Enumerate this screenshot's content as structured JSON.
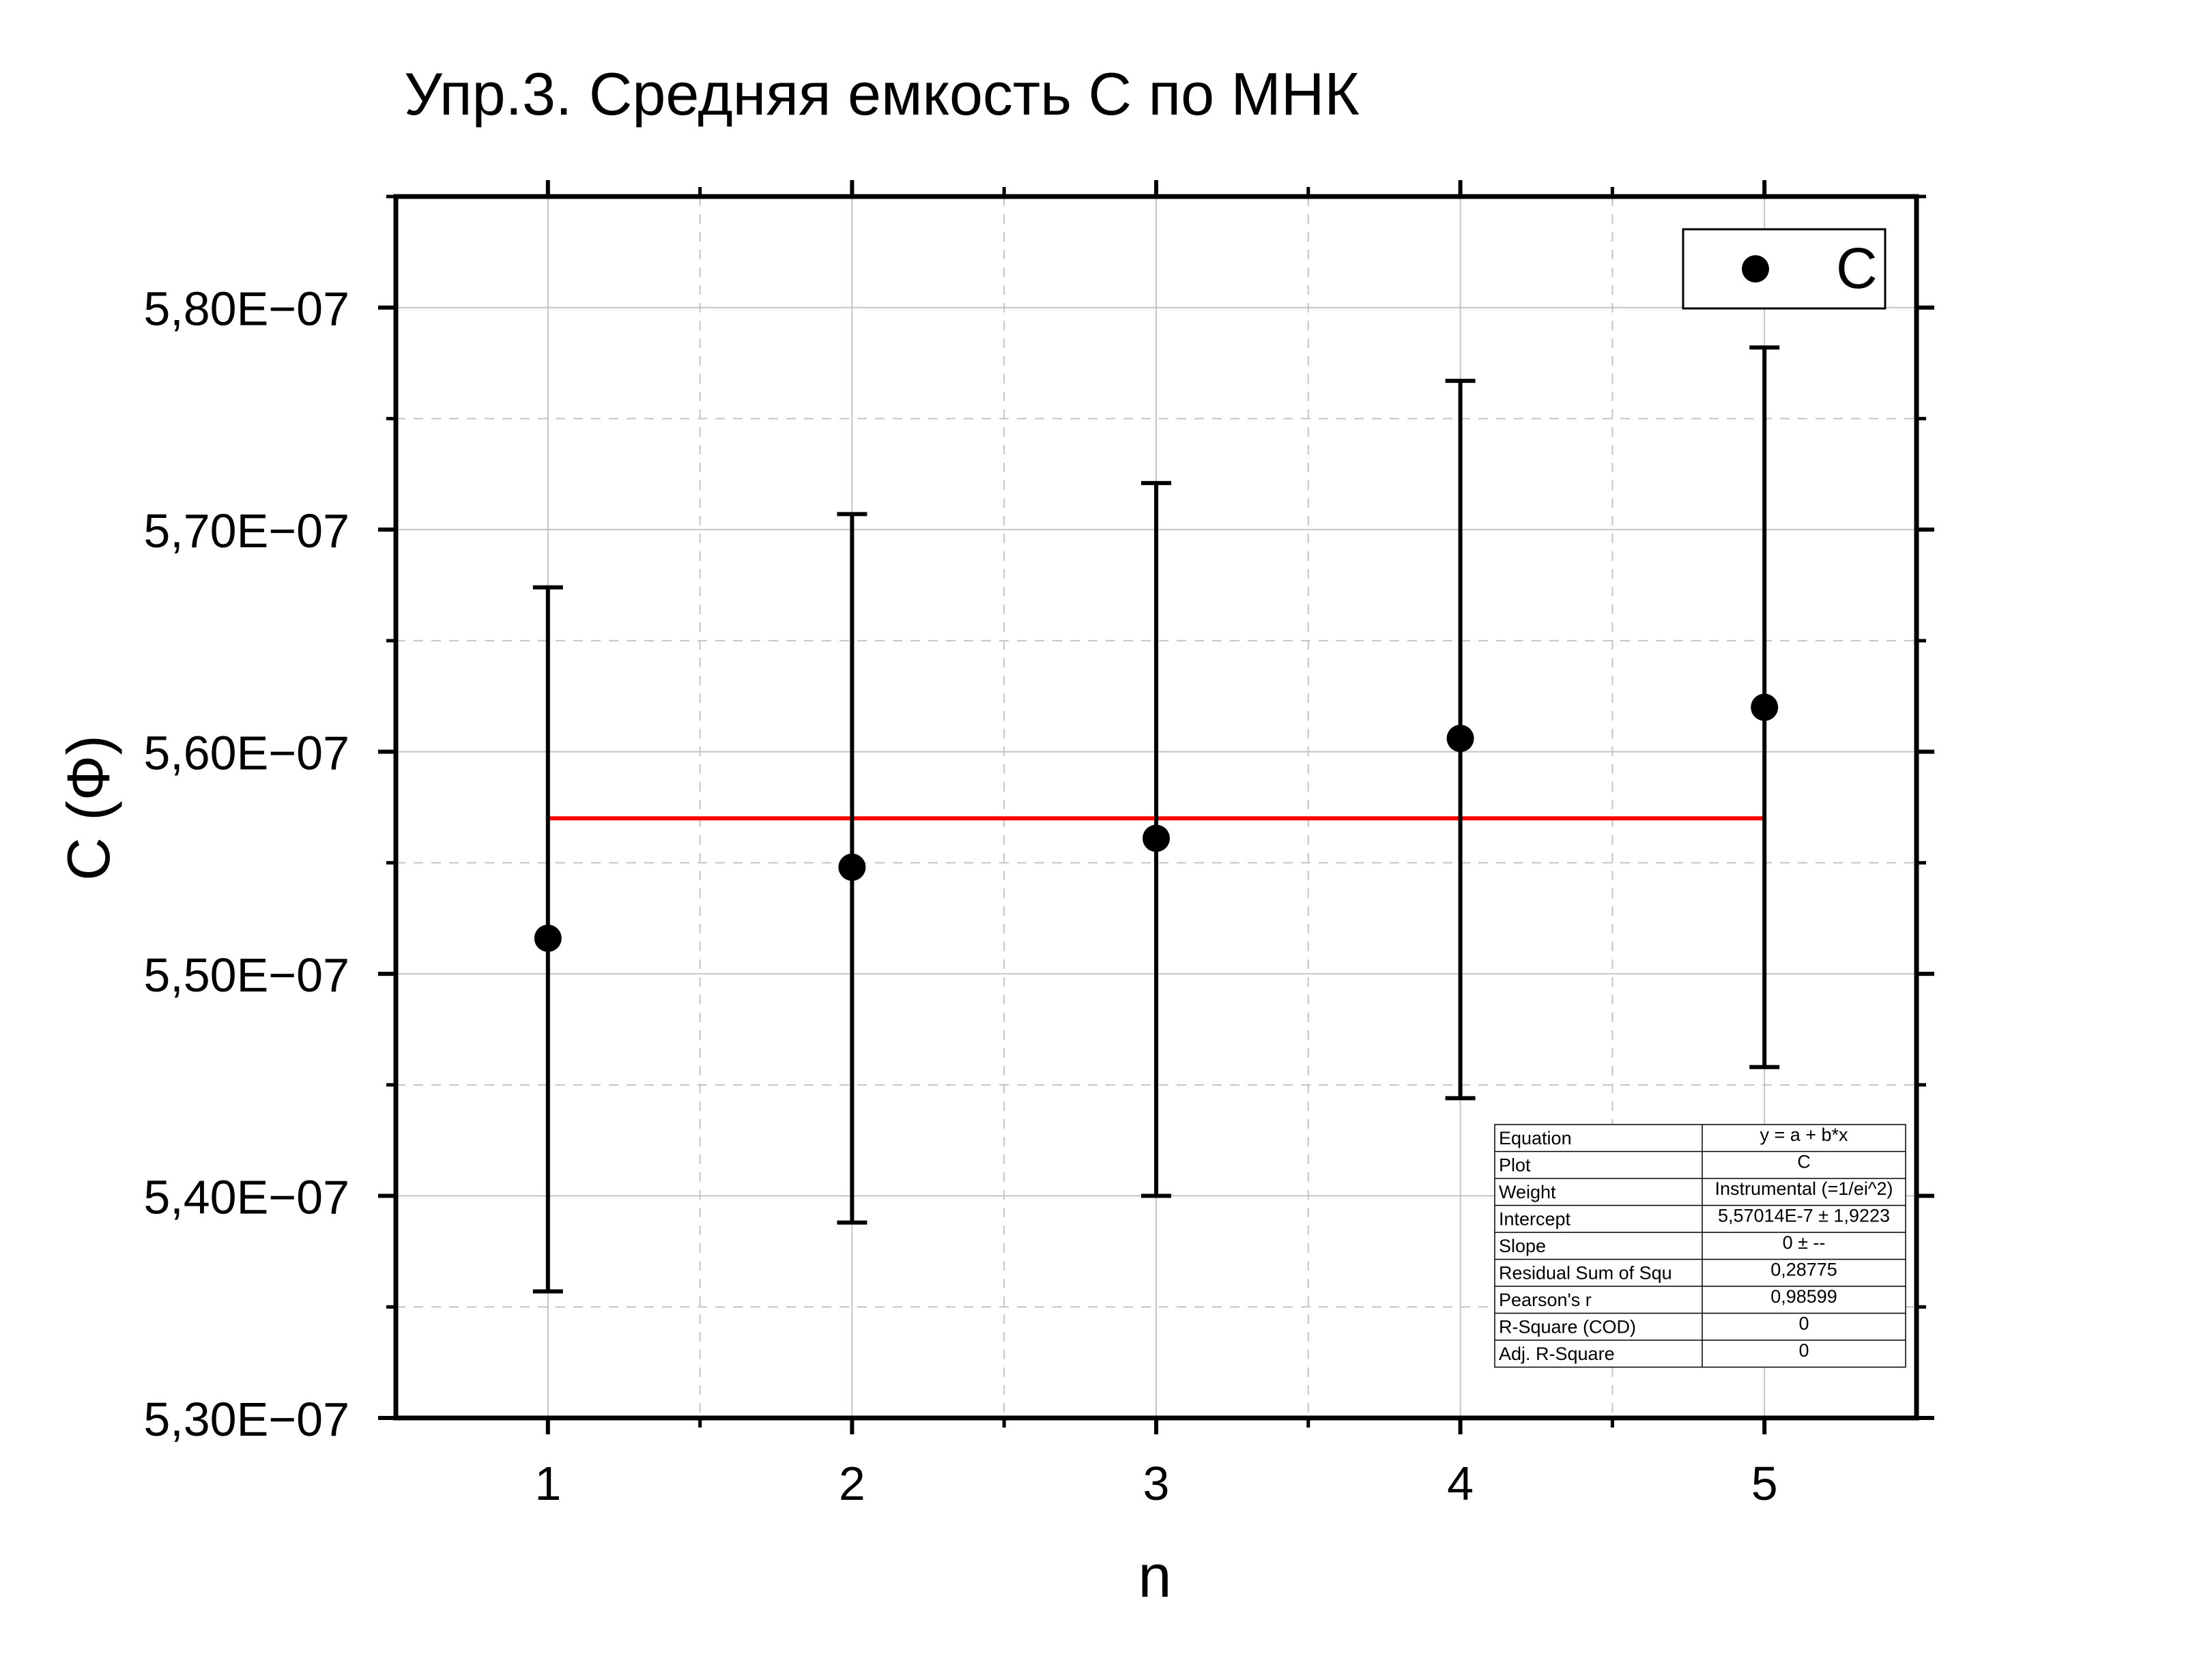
{
  "chart_data": {
    "type": "scatter",
    "title": "Упр.3. Средняя емкость С по МНК",
    "xlabel": "n",
    "ylabel": "С (Ф)",
    "xlim": [
      0.5,
      5.5
    ],
    "ylim": [
      5.3e-07,
      5.85e-07
    ],
    "x_ticks": [
      1,
      2,
      3,
      4,
      5
    ],
    "x_tick_labels": [
      "1",
      "2",
      "3",
      "4",
      "5"
    ],
    "y_ticks": [
      5.3e-07,
      5.4e-07,
      5.5e-07,
      5.6e-07,
      5.7e-07,
      5.8e-07
    ],
    "y_tick_labels": [
      "5,30E−07",
      "5,40E−07",
      "5,50E−07",
      "5,60E−07",
      "5,70E−07",
      "5,80E−07"
    ],
    "grid": true,
    "legend_position": "top-right",
    "series": [
      {
        "name": "C",
        "color": "#000000",
        "x": [
          1,
          2,
          3,
          4,
          5
        ],
        "y": [
          5.516e-07,
          5.548e-07,
          5.561e-07,
          5.606e-07,
          5.62e-07
        ],
        "error_low": [
          5.357e-07,
          5.388e-07,
          5.4e-07,
          5.444e-07,
          5.458e-07
        ],
        "error_high": [
          5.674e-07,
          5.707e-07,
          5.721e-07,
          5.767e-07,
          5.782e-07
        ]
      }
    ],
    "fit_line": {
      "color": "#ff0000",
      "x": [
        1,
        5
      ],
      "y": [
        5.57e-07,
        5.57e-07
      ]
    },
    "stats_table": [
      [
        "Equation",
        "y = a + b*x"
      ],
      [
        "Plot",
        "C"
      ],
      [
        "Weight",
        "Instrumental (=1/ei^2)"
      ],
      [
        "Intercept",
        "5,57014E-7 ± 1,9223"
      ],
      [
        "Slope",
        "0 ± --"
      ],
      [
        "Residual Sum of Squ",
        "0,28775"
      ],
      [
        "Pearson's r",
        "0,98599"
      ],
      [
        "R-Square (COD)",
        "0"
      ],
      [
        "Adj. R-Square",
        "0"
      ]
    ]
  }
}
